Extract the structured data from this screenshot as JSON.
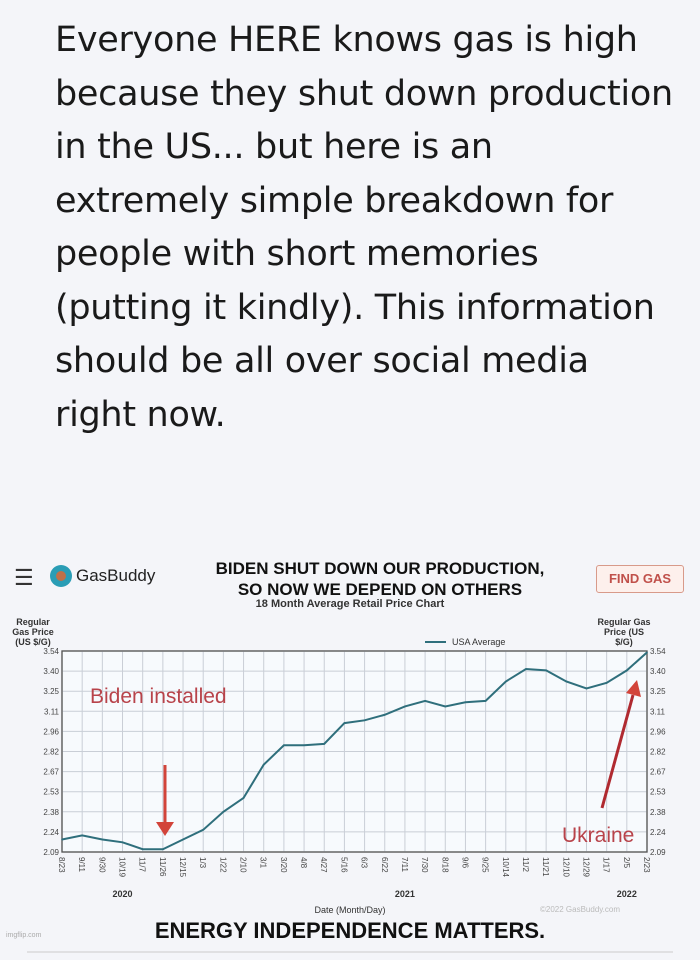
{
  "post": {
    "text": "Everyone HERE knows gas is high because they shut down production in the US... but here is an extremely simple breakdown for people with short memories (putting it kindly). This information should be all over social media right now."
  },
  "header": {
    "menu_icon": "hamburger-icon",
    "logo_text": "GasBuddy",
    "headline_1": "BIDEN SHUT DOWN OUR PRODUCTION,",
    "headline_2": "SO NOW WE DEPEND ON OTHERS",
    "find_gas": "FIND GAS"
  },
  "footer": {
    "text": "ENERGY INDEPENDENCE MATTERS.",
    "watermark": "imgflip.com",
    "copyright": "©2022 GasBuddy.com"
  },
  "chart_data": {
    "type": "line",
    "title": "18 Month Average Retail Price Chart",
    "ylabel_left": "Regular Gas Price (US $/G)",
    "ylabel_right": "Regular Gas Price (US $/G)",
    "xlabel": "Date (Month/Day)",
    "ylim": [
      2.09,
      3.54
    ],
    "yticks": [
      "3.54",
      "3.40",
      "3.25",
      "3.11",
      "2.96",
      "2.82",
      "2.67",
      "2.53",
      "2.38",
      "2.24",
      "2.09"
    ],
    "x": [
      "8/23",
      "9/11",
      "9/30",
      "10/19",
      "11/7",
      "11/26",
      "12/15",
      "1/3",
      "1/22",
      "2/10",
      "3/1",
      "3/20",
      "4/8",
      "4/27",
      "5/16",
      "6/3",
      "6/22",
      "7/11",
      "7/30",
      "8/18",
      "9/6",
      "9/25",
      "10/14",
      "11/2",
      "11/21",
      "12/10",
      "12/29",
      "1/17",
      "2/5",
      "2/23"
    ],
    "years": [
      {
        "label": "2020",
        "at": "10/19"
      },
      {
        "label": "2021",
        "at": "7/11"
      },
      {
        "label": "2022",
        "at": "2/5"
      }
    ],
    "grid": true,
    "legend": "top-right",
    "series": [
      {
        "name": "USA Average",
        "color": "#2f6f7c",
        "values": [
          2.18,
          2.21,
          2.18,
          2.16,
          2.11,
          2.11,
          2.18,
          2.25,
          2.38,
          2.48,
          2.72,
          2.86,
          2.86,
          2.87,
          3.02,
          3.04,
          3.08,
          3.14,
          3.18,
          3.14,
          3.17,
          3.18,
          3.32,
          3.41,
          3.4,
          3.32,
          3.27,
          3.31,
          3.4,
          3.53
        ]
      }
    ],
    "annotations": [
      {
        "text": "Biden installed",
        "color": "#b8434a"
      },
      {
        "text": "Ukraine",
        "color": "#b8434a"
      }
    ]
  }
}
